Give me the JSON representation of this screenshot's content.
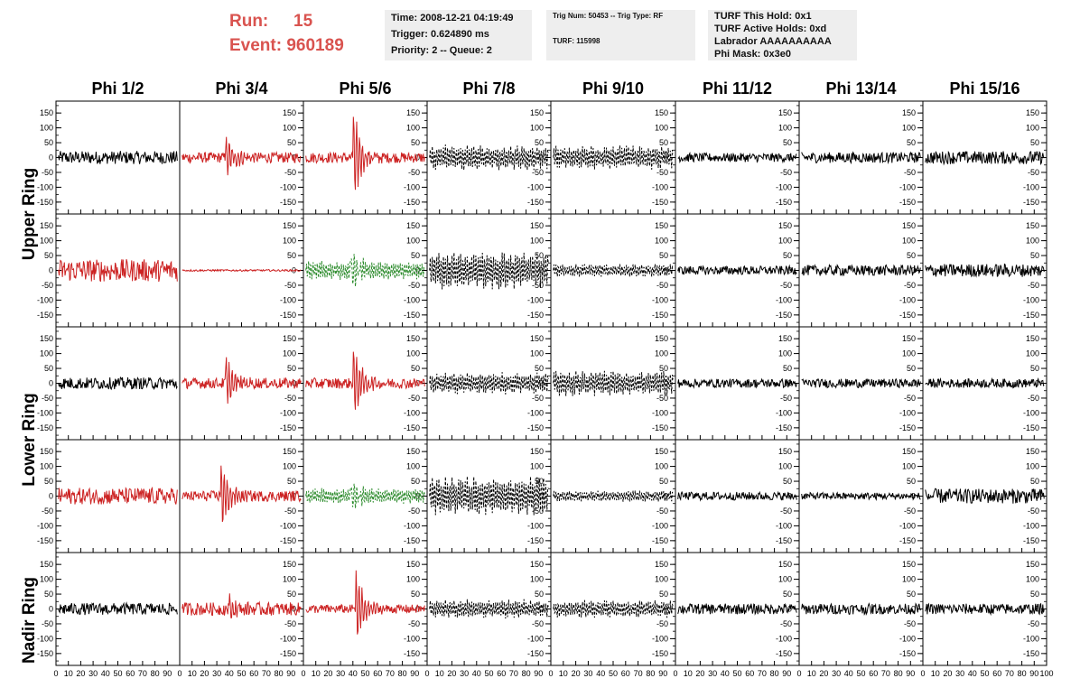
{
  "header": {
    "run_label": "Run:",
    "run_value": "15",
    "event_label": "Event:",
    "event_value": "960189"
  },
  "info_box_1": {
    "time": "Time: 2008-12-21 04:19:49",
    "trigger": "Trigger: 0.624890 ms",
    "priority": "Priority: 2 -- Queue: 2"
  },
  "info_box_2": {
    "trig": "Trig Num: 50453 -- Trig Type: RF",
    "turf": "TURF: 115998"
  },
  "info_box_3": {
    "this_hold": "TURF This Hold: 0x1",
    "active_holds": "TURF Active Holds: 0xd",
    "labrador": "Labrador AAAAAAAAAA",
    "phi_mask": "Phi Mask: 0x3e0"
  },
  "colors": {
    "red": "#cc2222",
    "green": "#2a8a2a",
    "black": "#000000"
  },
  "chart_data": {
    "type": "line",
    "columns": [
      "Phi 1/2",
      "Phi 3/4",
      "Phi 5/6",
      "Phi 7/8",
      "Phi 9/10",
      "Phi 11/12",
      "Phi 13/14",
      "Phi 15/16"
    ],
    "ring_labels": [
      "Upper Ring",
      "Lower Ring",
      "Nadir Ring"
    ],
    "xlim": [
      0,
      100
    ],
    "ylim": [
      -190,
      190
    ],
    "y_ticks": [
      150,
      100,
      50,
      0,
      -50,
      -100,
      -150
    ],
    "y_tick_labels": [
      "150",
      "100",
      "50",
      "0",
      "-50",
      "-100",
      "-150"
    ],
    "x_tick_labels": [
      "0",
      "10",
      "20",
      "30",
      "40",
      "50",
      "60",
      "70",
      "80",
      "90",
      "100"
    ],
    "panel_rows": [
      [
        {
          "color": "black",
          "style": "solid",
          "amp": 22,
          "burst": 0,
          "burst_at": 0
        },
        {
          "color": "red",
          "style": "solid",
          "amp": 18,
          "burst": 95,
          "burst_at": 37
        },
        {
          "color": "red",
          "style": "solid",
          "amp": 18,
          "burst": 175,
          "burst_at": 40
        },
        {
          "color": "black",
          "style": "dashed",
          "amp": 40,
          "burst": 0,
          "burst_at": 0
        },
        {
          "color": "black",
          "style": "dashed",
          "amp": 38,
          "burst": 0,
          "burst_at": 0
        },
        {
          "color": "black",
          "style": "solid",
          "amp": 15,
          "burst": 0,
          "burst_at": 0
        },
        {
          "color": "black",
          "style": "solid",
          "amp": 18,
          "burst": 0,
          "burst_at": 0
        },
        {
          "color": "black",
          "style": "solid",
          "amp": 22,
          "burst": 0,
          "burst_at": 0
        }
      ],
      [
        {
          "color": "red",
          "style": "solid",
          "amp": 38,
          "burst": 0,
          "burst_at": 0
        },
        {
          "color": "red",
          "style": "solid",
          "amp": 3,
          "burst": 0,
          "burst_at": 0
        },
        {
          "color": "green",
          "style": "dashed",
          "amp": 30,
          "burst": 70,
          "burst_at": 38
        },
        {
          "color": "black",
          "style": "dashed",
          "amp": 60,
          "burst": 0,
          "burst_at": 0
        },
        {
          "color": "black",
          "style": "dashed",
          "amp": 20,
          "burst": 0,
          "burst_at": 0
        },
        {
          "color": "black",
          "style": "solid",
          "amp": 15,
          "burst": 0,
          "burst_at": 0
        },
        {
          "color": "black",
          "style": "solid",
          "amp": 18,
          "burst": 0,
          "burst_at": 0
        },
        {
          "color": "black",
          "style": "solid",
          "amp": 22,
          "burst": 0,
          "burst_at": 0
        }
      ],
      [
        {
          "color": "black",
          "style": "solid",
          "amp": 20,
          "burst": 0,
          "burst_at": 0
        },
        {
          "color": "red",
          "style": "solid",
          "amp": 18,
          "burst": 100,
          "burst_at": 37
        },
        {
          "color": "red",
          "style": "solid",
          "amp": 18,
          "burst": 135,
          "burst_at": 40
        },
        {
          "color": "black",
          "style": "dashed",
          "amp": 35,
          "burst": 0,
          "burst_at": 0
        },
        {
          "color": "black",
          "style": "dashed",
          "amp": 40,
          "burst": 0,
          "burst_at": 0
        },
        {
          "color": "black",
          "style": "solid",
          "amp": 15,
          "burst": 0,
          "burst_at": 0
        },
        {
          "color": "black",
          "style": "solid",
          "amp": 15,
          "burst": 0,
          "burst_at": 0
        },
        {
          "color": "black",
          "style": "solid",
          "amp": 15,
          "burst": 0,
          "burst_at": 0
        }
      ],
      [
        {
          "color": "red",
          "style": "solid",
          "amp": 28,
          "burst": 0,
          "burst_at": 0
        },
        {
          "color": "red",
          "style": "solid",
          "amp": 18,
          "burst": 130,
          "burst_at": 33
        },
        {
          "color": "green",
          "style": "dashed",
          "amp": 25,
          "burst": 55,
          "burst_at": 38
        },
        {
          "color": "black",
          "style": "dashed",
          "amp": 62,
          "burst": 0,
          "burst_at": 0
        },
        {
          "color": "black",
          "style": "dashed",
          "amp": 18,
          "burst": 0,
          "burst_at": 0
        },
        {
          "color": "black",
          "style": "solid",
          "amp": 14,
          "burst": 0,
          "burst_at": 0
        },
        {
          "color": "black",
          "style": "solid",
          "amp": 12,
          "burst": 0,
          "burst_at": 0
        },
        {
          "color": "black",
          "style": "solid",
          "amp": 25,
          "burst": 0,
          "burst_at": 0
        }
      ],
      [
        {
          "color": "black",
          "style": "solid",
          "amp": 20,
          "burst": 0,
          "burst_at": 0
        },
        {
          "color": "red",
          "style": "solid",
          "amp": 22,
          "burst": 40,
          "burst_at": 40
        },
        {
          "color": "red",
          "style": "solid",
          "amp": 15,
          "burst": 150,
          "burst_at": 42
        },
        {
          "color": "black",
          "style": "dashed",
          "amp": 30,
          "burst": 0,
          "burst_at": 0
        },
        {
          "color": "black",
          "style": "dashed",
          "amp": 28,
          "burst": 0,
          "burst_at": 0
        },
        {
          "color": "black",
          "style": "solid",
          "amp": 18,
          "burst": 0,
          "burst_at": 0
        },
        {
          "color": "black",
          "style": "solid",
          "amp": 18,
          "burst": 0,
          "burst_at": 0
        },
        {
          "color": "black",
          "style": "solid",
          "amp": 18,
          "burst": 0,
          "burst_at": 0
        }
      ]
    ]
  }
}
